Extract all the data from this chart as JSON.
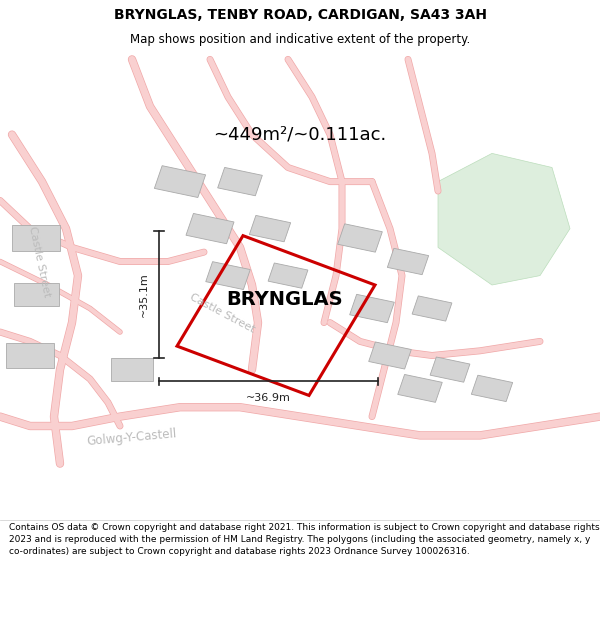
{
  "title": "BRYNGLAS, TENBY ROAD, CARDIGAN, SA43 3AH",
  "subtitle": "Map shows position and indicative extent of the property.",
  "area_label": "~449m²/~0.111ac.",
  "property_label": "BRYNGLAS",
  "dim_vertical": "~35.1m",
  "dim_horizontal": "~36.9m",
  "footer": "Contains OS data © Crown copyright and database right 2021. This information is subject to Crown copyright and database rights 2023 and is reproduced with the permission of HM Land Registry. The polygons (including the associated geometry, namely x, y co-ordinates) are subject to Crown copyright and database rights 2023 Ordnance Survey 100026316.",
  "map_bg": "#f2f2ee",
  "road_color": "#f9d0d0",
  "road_outline_color": "#f0a8a8",
  "building_color": "#d4d4d4",
  "building_outline": "#aaaaaa",
  "property_fill": "none",
  "property_outline": "#cc0000",
  "green_color": "#ddeedd",
  "green_outline": "#bbddbb",
  "street_label_color": "#bbbbbb",
  "dim_color": "#222222",
  "title_fontsize": 10,
  "subtitle_fontsize": 8.5,
  "area_fontsize": 13,
  "property_fontsize": 14,
  "dim_fontsize": 8,
  "street_fontsize": 8,
  "footer_fontsize": 6.5
}
